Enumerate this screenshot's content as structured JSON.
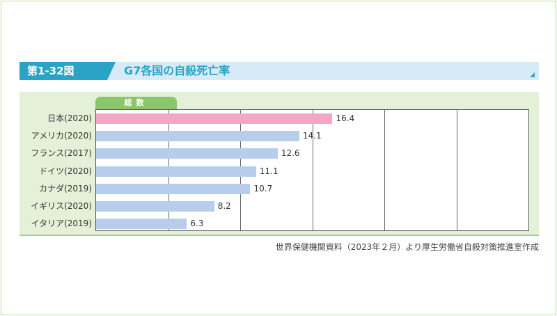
{
  "header": {
    "figure_no": "第1-32図",
    "title": "G7各国の自殺死亡率"
  },
  "chart_data": {
    "type": "bar",
    "orientation": "horizontal",
    "tab_label": "総数",
    "categories": [
      "日本(2020)",
      "アメリカ(2020)",
      "フランス(2017)",
      "ドイツ(2020)",
      "カナダ(2019)",
      "イギリス(2020)",
      "イタリア(2019)"
    ],
    "values": [
      16.4,
      14.1,
      12.6,
      11.1,
      10.7,
      8.2,
      6.3
    ],
    "value_labels": [
      "16.4",
      "14.1",
      "12.6",
      "11.1",
      "10.7",
      "8.2",
      "6.3"
    ],
    "xlim": [
      0,
      30
    ],
    "grid": true,
    "grid_step": 5,
    "colors": {
      "highlight": "#f4a6c4",
      "default": "#b8cdeb"
    },
    "highlight_index": 0
  },
  "source": "世界保健機関資料（2023年２月）より厚生労働省自殺対策推進室作成"
}
